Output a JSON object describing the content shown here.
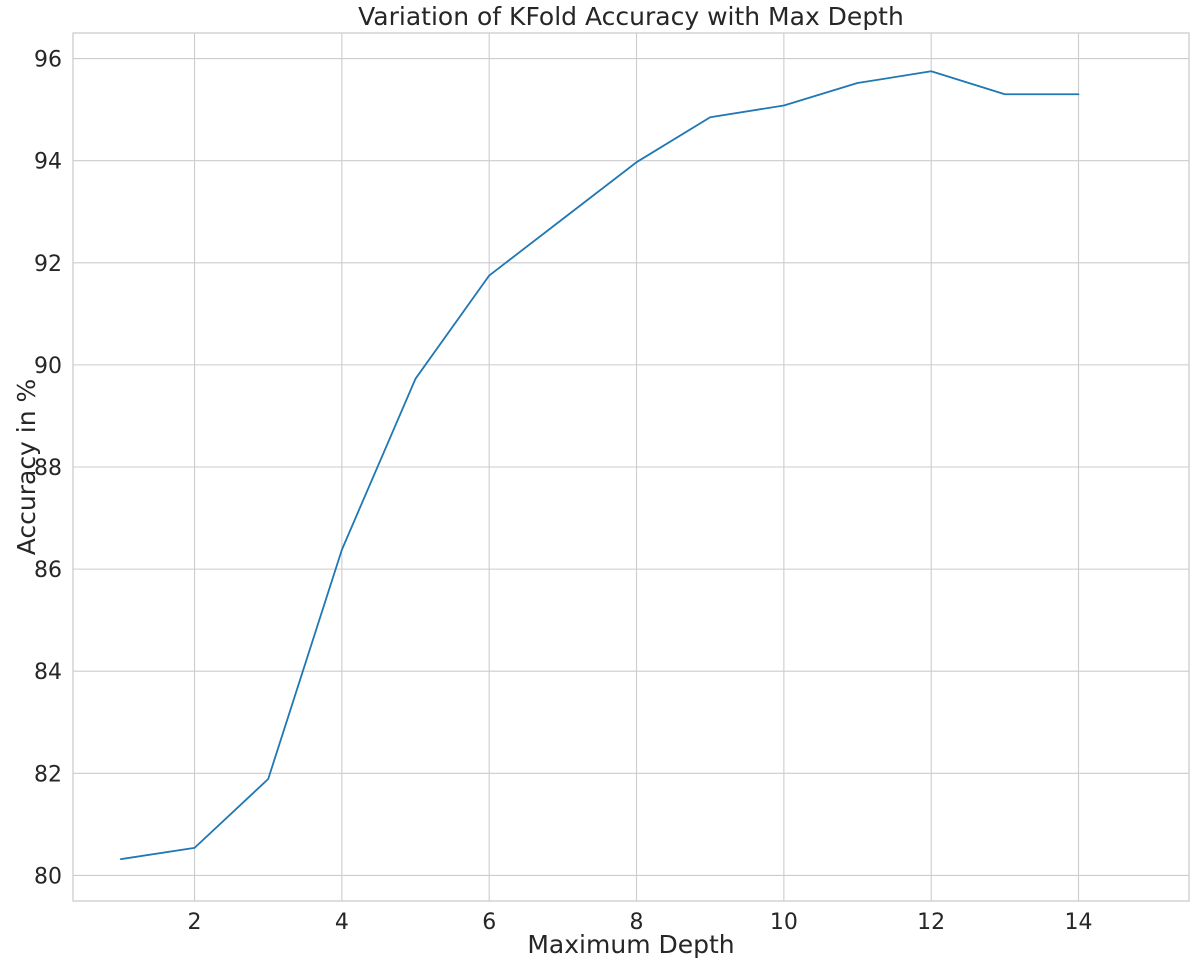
{
  "chart_data": {
    "type": "line",
    "title": "Variation of KFold Accuracy with Max Depth",
    "xlabel": "Maximum Depth",
    "ylabel": "Accuracy in %",
    "x": [
      1,
      2,
      3,
      4,
      5,
      6,
      7,
      8,
      9,
      10,
      11,
      12,
      13,
      14
    ],
    "series": [
      {
        "values": [
          80.32,
          80.54,
          81.89,
          86.38,
          89.73,
          91.75,
          92.86,
          93.97,
          94.85,
          95.08,
          95.52,
          95.75,
          95.3,
          95.3
        ],
        "color": "#1f77b4"
      }
    ],
    "xlim": [
      0.35,
      15.5
    ],
    "ylim": [
      79.5,
      96.5
    ],
    "xticks": [
      2,
      4,
      6,
      8,
      10,
      12,
      14
    ],
    "yticks": [
      80,
      82,
      84,
      86,
      88,
      90,
      92,
      94,
      96
    ],
    "grid": true,
    "legend": "none"
  }
}
